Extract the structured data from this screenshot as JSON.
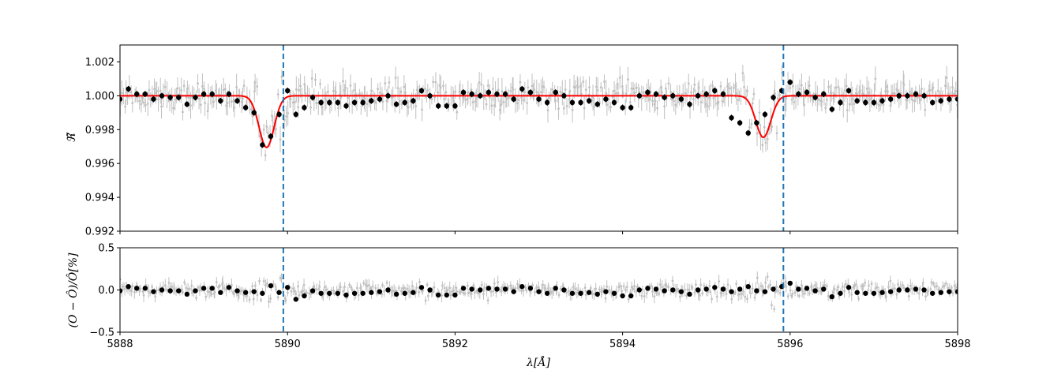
{
  "figure": {
    "xlabel": "λ[Å]",
    "top_ylabel": "ℜ̃",
    "bottom_ylabel": "(O − Ô)/Ô[%]"
  },
  "chart_data": [
    {
      "type": "scatter",
      "panel": "top",
      "xlabel": "",
      "ylabel": "ℜ̃",
      "xlim": [
        5888,
        5898
      ],
      "ylim": [
        0.992,
        1.003
      ],
      "xticks": [
        5888,
        5890,
        5892,
        5894,
        5896,
        5898
      ],
      "xtick_labels": [],
      "yticks": [
        0.992,
        0.994,
        0.996,
        0.998,
        1.0,
        1.002
      ],
      "ytick_labels": [
        "0.992",
        "0.994",
        "0.996",
        "0.998",
        "1.000",
        "1.002"
      ],
      "grid": false,
      "vlines": [
        5889.95,
        5895.92
      ],
      "series": [
        {
          "style": "binned-points",
          "color": "#000000",
          "x": [
            5888.0,
            5888.1,
            5888.2,
            5888.3,
            5888.4,
            5888.5,
            5888.6,
            5888.7,
            5888.8,
            5888.9,
            5889.0,
            5889.1,
            5889.2,
            5889.3,
            5889.4,
            5889.5,
            5889.6,
            5889.7,
            5889.8,
            5889.9,
            5890.0,
            5890.1,
            5890.2,
            5890.3,
            5890.4,
            5890.5,
            5890.6,
            5890.7,
            5890.8,
            5890.9,
            5891.0,
            5891.1,
            5891.2,
            5891.3,
            5891.4,
            5891.5,
            5891.6,
            5891.7,
            5891.8,
            5891.9,
            5892.0,
            5892.1,
            5892.2,
            5892.3,
            5892.4,
            5892.5,
            5892.6,
            5892.7,
            5892.8,
            5892.9,
            5893.0,
            5893.1,
            5893.2,
            5893.3,
            5893.4,
            5893.5,
            5893.6,
            5893.7,
            5893.8,
            5893.9,
            5894.0,
            5894.1,
            5894.2,
            5894.3,
            5894.4,
            5894.5,
            5894.6,
            5894.7,
            5894.8,
            5894.9,
            5895.0,
            5895.1,
            5895.2,
            5895.3,
            5895.4,
            5895.5,
            5895.6,
            5895.7,
            5895.8,
            5895.9,
            5896.0,
            5896.1,
            5896.2,
            5896.3,
            5896.4,
            5896.5,
            5896.6,
            5896.7,
            5896.8,
            5896.9,
            5897.0,
            5897.1,
            5897.2,
            5897.3,
            5897.4,
            5897.5,
            5897.6,
            5897.7,
            5897.8,
            5897.9,
            5898.0
          ],
          "y": [
            0.9998,
            1.0004,
            1.0001,
            1.0001,
            0.9998,
            1.0,
            0.9999,
            0.9999,
            0.9995,
            0.9999,
            1.0001,
            1.0001,
            0.9997,
            1.0001,
            0.9997,
            0.9993,
            0.999,
            0.9971,
            0.9976,
            0.9989,
            1.0003,
            0.9989,
            0.9993,
            0.9999,
            0.9996,
            0.9996,
            0.9996,
            0.9994,
            0.9996,
            0.9996,
            0.9997,
            0.9998,
            1.0,
            0.9995,
            0.9996,
            0.9997,
            1.0003,
            1.0,
            0.9994,
            0.9994,
            0.9994,
            1.0002,
            1.0001,
            1.0,
            1.0002,
            1.0001,
            1.0001,
            0.9998,
            1.0004,
            1.0002,
            0.9998,
            0.9996,
            1.0002,
            1.0,
            0.9996,
            0.9996,
            0.9997,
            0.9995,
            0.9998,
            0.9996,
            0.9993,
            0.9993,
            1.0,
            1.0002,
            1.0001,
            0.9999,
            1.0,
            0.9998,
            0.9995,
            1.0,
            1.0001,
            1.0003,
            1.0001,
            0.9987,
            0.9984,
            0.9978,
            0.9984,
            0.9989,
            0.9999,
            1.0003,
            1.0008,
            1.0001,
            1.0002,
            0.9999,
            1.0001,
            0.9992,
            0.9996,
            1.0003,
            0.9997,
            0.9996,
            0.9996,
            0.9997,
            0.9998,
            1.0,
            1.0,
            1.0001,
            1.0,
            0.9996,
            0.9997,
            0.9998,
            0.9998
          ]
        },
        {
          "style": "model-line",
          "color": "#ff0000",
          "lines": [
            {
              "center": 5889.75,
              "depth": 0.00305,
              "sigma": 0.09
            },
            {
              "center": 5895.68,
              "depth": 0.00245,
              "sigma": 0.09
            }
          ]
        }
      ]
    },
    {
      "type": "scatter",
      "panel": "bottom",
      "xlabel": "λ[Å]",
      "ylabel": "(O − Ô)/Ô[%]",
      "xlim": [
        5888,
        5898
      ],
      "ylim": [
        -0.5,
        0.5
      ],
      "xticks": [
        5888,
        5890,
        5892,
        5894,
        5896,
        5898
      ],
      "xtick_labels": [
        "5888",
        "5890",
        "5892",
        "5894",
        "5896",
        "5898"
      ],
      "yticks": [
        -0.5,
        0.0,
        0.5
      ],
      "ytick_labels": [
        "−0.5",
        "0.0",
        "0.5"
      ],
      "grid": false,
      "vlines": [
        5889.95,
        5895.92
      ],
      "series": [
        {
          "style": "binned-points",
          "color": "#000000",
          "x": [
            5888.0,
            5888.1,
            5888.2,
            5888.3,
            5888.4,
            5888.5,
            5888.6,
            5888.7,
            5888.8,
            5888.9,
            5889.0,
            5889.1,
            5889.2,
            5889.3,
            5889.4,
            5889.5,
            5889.6,
            5889.7,
            5889.8,
            5889.9,
            5890.0,
            5890.1,
            5890.2,
            5890.3,
            5890.4,
            5890.5,
            5890.6,
            5890.7,
            5890.8,
            5890.9,
            5891.0,
            5891.1,
            5891.2,
            5891.3,
            5891.4,
            5891.5,
            5891.6,
            5891.7,
            5891.8,
            5891.9,
            5892.0,
            5892.1,
            5892.2,
            5892.3,
            5892.4,
            5892.5,
            5892.6,
            5892.7,
            5892.8,
            5892.9,
            5893.0,
            5893.1,
            5893.2,
            5893.3,
            5893.4,
            5893.5,
            5893.6,
            5893.7,
            5893.8,
            5893.9,
            5894.0,
            5894.1,
            5894.2,
            5894.3,
            5894.4,
            5894.5,
            5894.6,
            5894.7,
            5894.8,
            5894.9,
            5895.0,
            5895.1,
            5895.2,
            5895.3,
            5895.4,
            5895.5,
            5895.6,
            5895.7,
            5895.8,
            5895.9,
            5896.0,
            5896.1,
            5896.2,
            5896.3,
            5896.4,
            5896.5,
            5896.6,
            5896.7,
            5896.8,
            5896.9,
            5897.0,
            5897.1,
            5897.2,
            5897.3,
            5897.4,
            5897.5,
            5897.6,
            5897.7,
            5897.8,
            5897.9,
            5898.0
          ],
          "y": [
            -0.01,
            0.04,
            0.02,
            0.02,
            -0.02,
            0.0,
            -0.01,
            -0.01,
            -0.05,
            -0.01,
            0.02,
            0.02,
            -0.03,
            0.03,
            -0.01,
            -0.03,
            -0.02,
            -0.04,
            0.05,
            -0.03,
            0.03,
            -0.11,
            -0.07,
            -0.01,
            -0.04,
            -0.04,
            -0.04,
            -0.06,
            -0.04,
            -0.04,
            -0.03,
            -0.02,
            0.0,
            -0.05,
            -0.04,
            -0.03,
            0.03,
            0.0,
            -0.06,
            -0.06,
            -0.06,
            0.02,
            0.01,
            0.0,
            0.02,
            0.01,
            0.01,
            -0.02,
            0.04,
            0.02,
            -0.02,
            -0.04,
            0.02,
            0.0,
            -0.04,
            -0.04,
            -0.03,
            -0.05,
            -0.02,
            -0.04,
            -0.07,
            -0.07,
            0.0,
            0.02,
            0.01,
            -0.01,
            0.0,
            -0.02,
            -0.05,
            0.0,
            0.01,
            0.03,
            0.01,
            -0.02,
            0.01,
            0.04,
            -0.01,
            -0.02,
            0.01,
            0.04,
            0.08,
            0.01,
            0.02,
            -0.01,
            0.01,
            -0.08,
            -0.04,
            0.03,
            -0.03,
            -0.04,
            -0.04,
            -0.03,
            -0.02,
            0.0,
            0.0,
            0.01,
            0.0,
            -0.04,
            -0.03,
            -0.02,
            -0.02
          ]
        }
      ]
    }
  ],
  "colors": {
    "raw_points": "#c0c0c0",
    "binned_points": "#000000",
    "model": "#ff0000",
    "vlines": "#1f77b4"
  }
}
